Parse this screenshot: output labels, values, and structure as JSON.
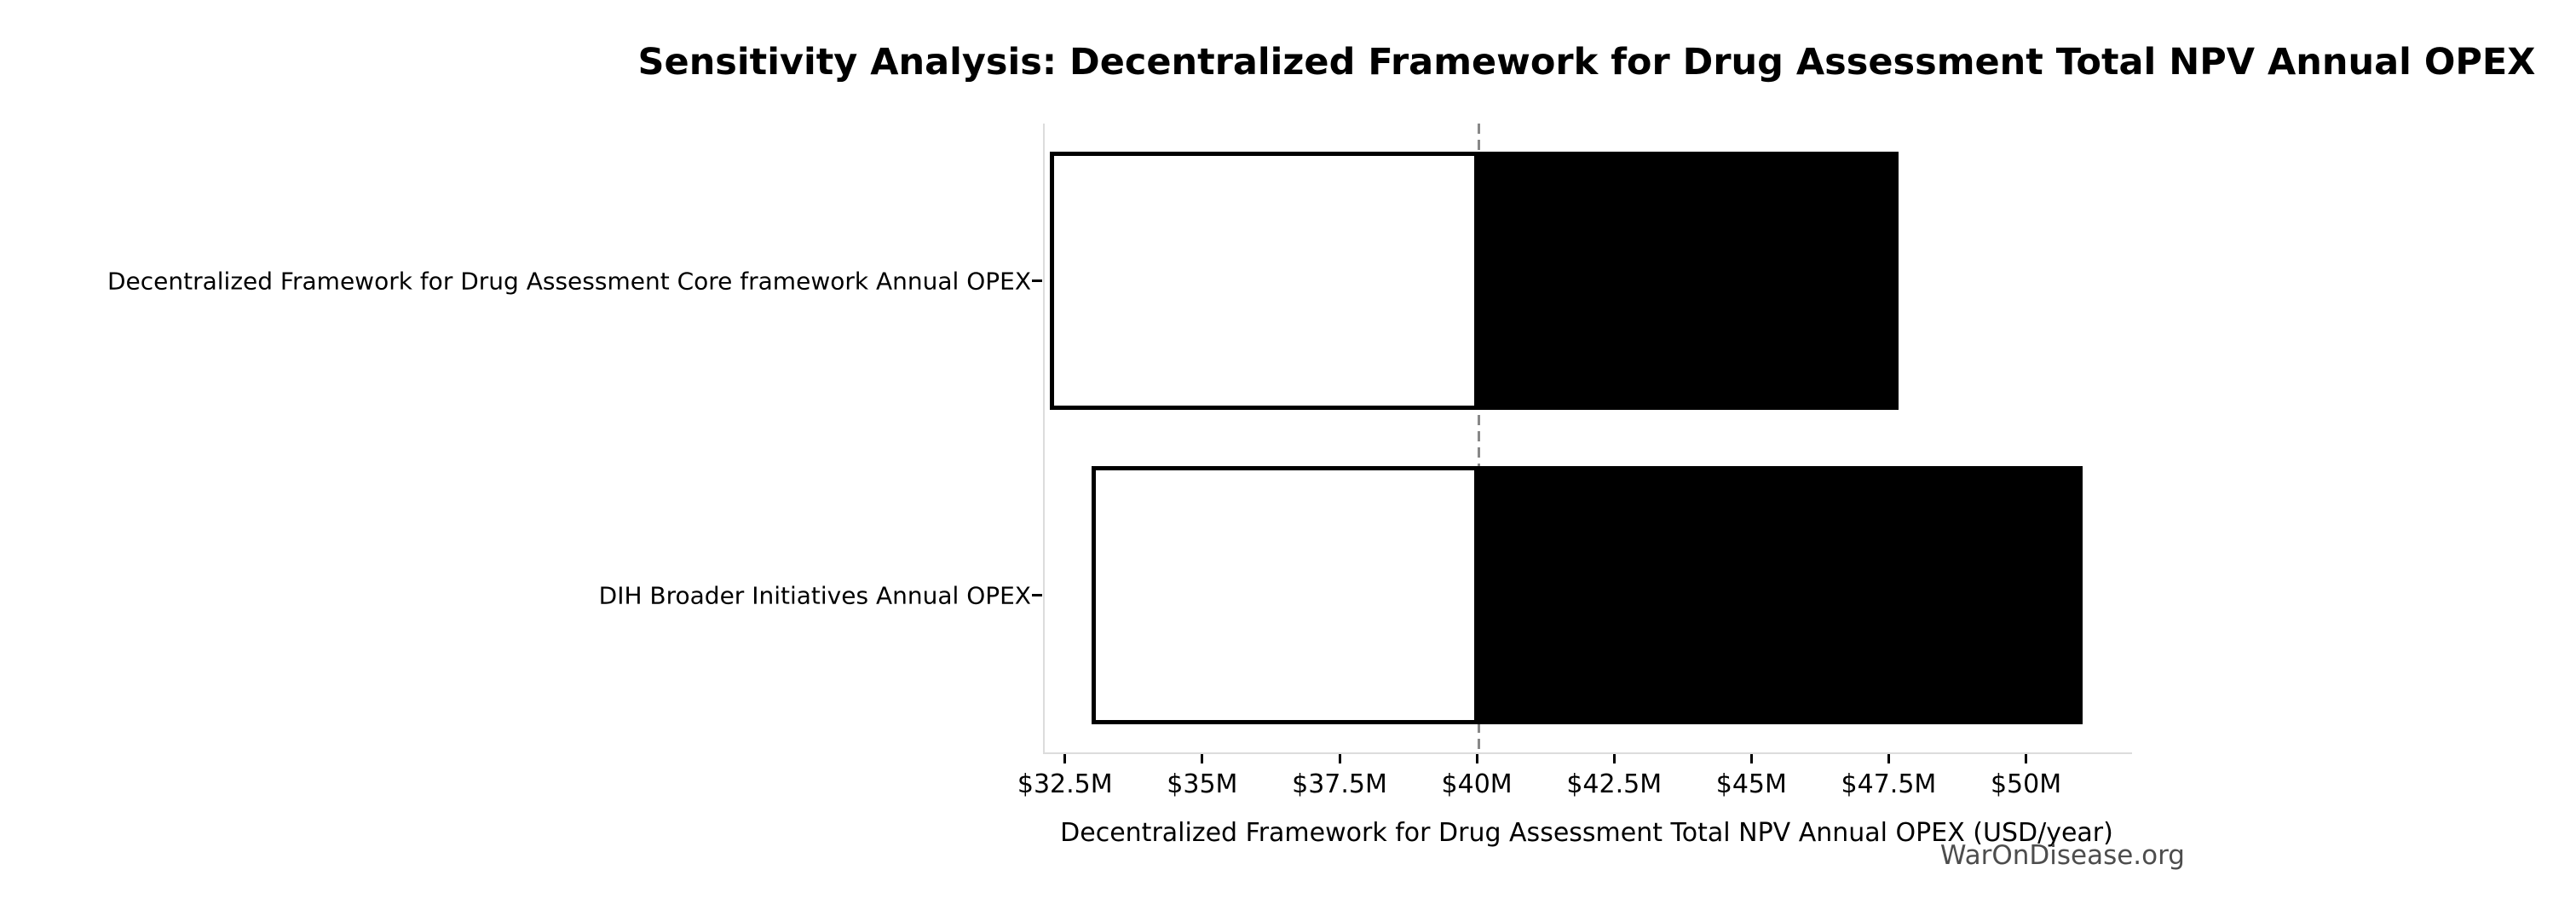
{
  "chart_data": {
    "type": "bar",
    "subtype": "tornado-sensitivity",
    "orientation": "horizontal",
    "title": "Sensitivity Analysis: Decentralized Framework for Drug Assessment Total NPV Annual OPEX",
    "xlabel": "Decentralized Framework for Drug Assessment Total NPV Annual OPEX (USD/year)",
    "ylabel": "",
    "categories": [
      "Decentralized Framework for Drug Assessment Core framework Annual OPEX",
      "DIH Broader Initiatives Annual OPEX"
    ],
    "series": [
      {
        "name": "low_value_white_segment",
        "values": [
          32.2,
          32.95
        ]
      },
      {
        "name": "high_value_black_segment",
        "values": [
          47.65,
          51.0
        ]
      }
    ],
    "baseline": 40.0,
    "units": "USD millions per year",
    "xlim": [
      32.1,
      51.9
    ],
    "xticks": [
      32.5,
      35,
      37.5,
      40,
      42.5,
      45,
      47.5,
      50
    ],
    "xtick_labels": [
      "$32.5M",
      "$35M",
      "$37.5M",
      "$40M",
      "$42.5M",
      "$45M",
      "$47.5M",
      "$50M"
    ],
    "grid": false,
    "legend": null,
    "watermark": "WarOnDisease.org",
    "colors": {
      "bar_high_fill": "#000000",
      "bar_low_fill": "#ffffff",
      "bar_edge": "#000000",
      "baseline_line": "#888888",
      "spine": "#dcdcdc",
      "tick_mark": "#000000",
      "text": "#000000",
      "watermark": "#4d4d4d",
      "background": "#ffffff"
    }
  }
}
